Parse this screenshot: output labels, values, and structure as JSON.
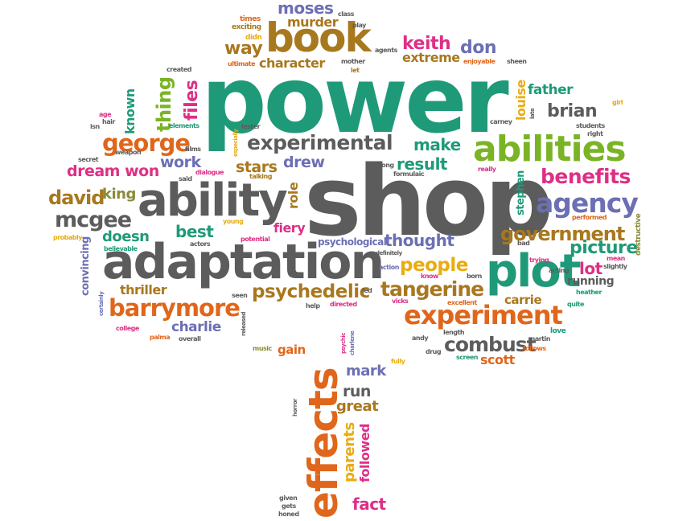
{
  "colors": {
    "green": "#1f9a78",
    "gray": "#5c5c5c",
    "brown": "#a8781e",
    "orange": "#e0661b",
    "pink": "#de2f86",
    "blue": "#6c6fb3",
    "lime": "#7ab426",
    "gold": "#e8ac12",
    "olive": "#8a8a3a"
  },
  "words": [
    {
      "id": "power",
      "text": "power",
      "color": "green"
    },
    {
      "id": "shop",
      "text": "shop",
      "color": "gray"
    },
    {
      "id": "adaptation",
      "text": "adaptation",
      "color": "gray"
    },
    {
      "id": "ability",
      "text": "ability",
      "color": "gray"
    },
    {
      "id": "book",
      "text": "book",
      "color": "brown"
    },
    {
      "id": "abilities",
      "text": "abilities",
      "color": "lime"
    },
    {
      "id": "plot",
      "text": "plot",
      "color": "green"
    },
    {
      "id": "effects",
      "text": "effects",
      "color": "orange"
    },
    {
      "id": "experiment",
      "text": "experiment",
      "color": "orange"
    },
    {
      "id": "experimental",
      "text": "experimental",
      "color": "gray"
    },
    {
      "id": "barrymore",
      "text": "barrymore",
      "color": "orange"
    },
    {
      "id": "agency",
      "text": "agency",
      "color": "blue"
    },
    {
      "id": "government",
      "text": "government",
      "color": "brown"
    },
    {
      "id": "george",
      "text": "george",
      "color": "orange"
    },
    {
      "id": "psychedelic",
      "text": "psychedelic",
      "color": "brown"
    },
    {
      "id": "tangerine",
      "text": "tangerine",
      "color": "brown"
    },
    {
      "id": "combust",
      "text": "combust",
      "color": "gray"
    },
    {
      "id": "benefits",
      "text": "benefits",
      "color": "pink"
    },
    {
      "id": "picture",
      "text": "picture",
      "color": "green"
    },
    {
      "id": "mcgee",
      "text": "mcgee",
      "color": "gray"
    },
    {
      "id": "david",
      "text": "david",
      "color": "brown"
    },
    {
      "id": "king",
      "text": "king",
      "color": "olive"
    },
    {
      "id": "dreamwon",
      "text": "dream won",
      "color": "pink"
    },
    {
      "id": "result",
      "text": "result",
      "color": "green"
    },
    {
      "id": "thought",
      "text": "thought",
      "color": "blue"
    },
    {
      "id": "people",
      "text": "people",
      "color": "gold"
    },
    {
      "id": "keith",
      "text": "keith",
      "color": "pink"
    },
    {
      "id": "don",
      "text": "don",
      "color": "blue"
    },
    {
      "id": "extreme",
      "text": "extreme",
      "color": "brown"
    },
    {
      "id": "moses",
      "text": "moses",
      "color": "blue"
    },
    {
      "id": "murder",
      "text": "murder",
      "color": "brown"
    },
    {
      "id": "way",
      "text": "way",
      "color": "brown"
    },
    {
      "id": "character",
      "text": "character",
      "color": "brown"
    },
    {
      "id": "thing",
      "text": "thing",
      "color": "lime"
    },
    {
      "id": "files",
      "text": "files",
      "color": "pink"
    },
    {
      "id": "known",
      "text": "known",
      "color": "green"
    },
    {
      "id": "father",
      "text": "father",
      "color": "green"
    },
    {
      "id": "brian",
      "text": "brian",
      "color": "gray"
    },
    {
      "id": "louise",
      "text": "louise",
      "color": "gold"
    },
    {
      "id": "make",
      "text": "make",
      "color": "green"
    },
    {
      "id": "work",
      "text": "work",
      "color": "blue"
    },
    {
      "id": "stars",
      "text": "stars",
      "color": "brown"
    },
    {
      "id": "drew",
      "text": "drew",
      "color": "blue"
    },
    {
      "id": "role",
      "text": "role",
      "color": "brown"
    },
    {
      "id": "best",
      "text": "best",
      "color": "green"
    },
    {
      "id": "doesn",
      "text": "doesn",
      "color": "green"
    },
    {
      "id": "fiery",
      "text": "fiery",
      "color": "pink"
    },
    {
      "id": "thriller",
      "text": "thriller",
      "color": "brown"
    },
    {
      "id": "charlie",
      "text": "charlie",
      "color": "blue"
    },
    {
      "id": "lot",
      "text": "lot",
      "color": "pink"
    },
    {
      "id": "running",
      "text": "running",
      "color": "gray"
    },
    {
      "id": "carrie",
      "text": "carrie",
      "color": "brown"
    },
    {
      "id": "scott",
      "text": "scott",
      "color": "orange"
    },
    {
      "id": "mark",
      "text": "mark",
      "color": "blue"
    },
    {
      "id": "run",
      "text": "run",
      "color": "gray"
    },
    {
      "id": "great",
      "text": "great",
      "color": "brown"
    },
    {
      "id": "parents",
      "text": "parents",
      "color": "gold"
    },
    {
      "id": "followed",
      "text": "followed",
      "color": "pink"
    },
    {
      "id": "fact",
      "text": "fact",
      "color": "pink"
    },
    {
      "id": "gain",
      "text": "gain",
      "color": "orange"
    },
    {
      "id": "convincing",
      "text": "convincing",
      "color": "blue"
    },
    {
      "id": "stephen",
      "text": "stephen",
      "color": "green"
    },
    {
      "id": "psychological",
      "text": "psychological",
      "color": "blue"
    },
    {
      "id": "destructive",
      "text": "destructive",
      "color": "olive"
    },
    {
      "id": "times",
      "text": "times",
      "color": "orange"
    },
    {
      "id": "exciting",
      "text": "exciting",
      "color": "brown"
    },
    {
      "id": "didn",
      "text": "didn",
      "color": "gold"
    },
    {
      "id": "ultimate",
      "text": "ultimate",
      "color": "orange"
    },
    {
      "id": "class",
      "text": "class",
      "color": "gray"
    },
    {
      "id": "play",
      "text": "play",
      "color": "gray"
    },
    {
      "id": "agents",
      "text": "agents",
      "color": "gray"
    },
    {
      "id": "mother",
      "text": "mother",
      "color": "gray"
    },
    {
      "id": "let",
      "text": "let",
      "color": "brown"
    },
    {
      "id": "enjoyable",
      "text": "enjoyable",
      "color": "orange"
    },
    {
      "id": "sheen",
      "text": "sheen",
      "color": "gray"
    },
    {
      "id": "created",
      "text": "created",
      "color": "gray"
    },
    {
      "id": "age",
      "text": "age",
      "color": "pink"
    },
    {
      "id": "hair",
      "text": "hair",
      "color": "gray"
    },
    {
      "id": "isn",
      "text": "isn",
      "color": "gray"
    },
    {
      "id": "elements",
      "text": "elements",
      "color": "green"
    },
    {
      "id": "lester",
      "text": "lester",
      "color": "gray"
    },
    {
      "id": "especially",
      "text": "especially",
      "color": "gold"
    },
    {
      "id": "secret",
      "text": "secret",
      "color": "gray"
    },
    {
      "id": "weapon",
      "text": "weapon",
      "color": "gray"
    },
    {
      "id": "films",
      "text": "films",
      "color": "gray"
    },
    {
      "id": "said",
      "text": "said",
      "color": "gray"
    },
    {
      "id": "dialogue",
      "text": "dialogue",
      "color": "pink"
    },
    {
      "id": "talking",
      "text": "talking",
      "color": "brown"
    },
    {
      "id": "long",
      "text": "long",
      "color": "gray"
    },
    {
      "id": "formulaic",
      "text": "formulaic",
      "color": "gray"
    },
    {
      "id": "really",
      "text": "really",
      "color": "pink"
    },
    {
      "id": "young",
      "text": "young",
      "color": "gold"
    },
    {
      "id": "actors",
      "text": "actors",
      "color": "gray"
    },
    {
      "id": "potential",
      "text": "potential",
      "color": "pink"
    },
    {
      "id": "probably",
      "text": "probably",
      "color": "gold"
    },
    {
      "id": "believable",
      "text": "believable",
      "color": "green"
    },
    {
      "id": "certainly",
      "text": "certainly",
      "color": "blue"
    },
    {
      "id": "seen",
      "text": "seen",
      "color": "gray"
    },
    {
      "id": "led",
      "text": "led",
      "color": "gray"
    },
    {
      "id": "help",
      "text": "help",
      "color": "gray"
    },
    {
      "id": "directed",
      "text": "directed",
      "color": "pink"
    },
    {
      "id": "released",
      "text": "released",
      "color": "gray"
    },
    {
      "id": "college",
      "text": "college",
      "color": "pink"
    },
    {
      "id": "palma",
      "text": "palma",
      "color": "orange"
    },
    {
      "id": "overall",
      "text": "overall",
      "color": "gray"
    },
    {
      "id": "music",
      "text": "music",
      "color": "olive"
    },
    {
      "id": "psychic",
      "text": "psychic",
      "color": "pink"
    },
    {
      "id": "charlene",
      "text": "charlene",
      "color": "blue"
    },
    {
      "id": "definitely",
      "text": "definitely",
      "color": "gray"
    },
    {
      "id": "action",
      "text": "action",
      "color": "blue"
    },
    {
      "id": "know",
      "text": "know",
      "color": "pink"
    },
    {
      "id": "born",
      "text": "born",
      "color": "gray"
    },
    {
      "id": "vicks",
      "text": "vicks",
      "color": "pink"
    },
    {
      "id": "excellent",
      "text": "excellent",
      "color": "orange"
    },
    {
      "id": "length",
      "text": "length",
      "color": "gray"
    },
    {
      "id": "andy",
      "text": "andy",
      "color": "gray"
    },
    {
      "id": "drug",
      "text": "drug",
      "color": "gray"
    },
    {
      "id": "screen",
      "text": "screen",
      "color": "green"
    },
    {
      "id": "fully",
      "text": "fully",
      "color": "gold"
    },
    {
      "id": "martin",
      "text": "martin",
      "color": "gray"
    },
    {
      "id": "follows",
      "text": "follows",
      "color": "orange"
    },
    {
      "id": "love",
      "text": "love",
      "color": "green"
    },
    {
      "id": "quite",
      "text": "quite",
      "color": "green"
    },
    {
      "id": "heather",
      "text": "heather",
      "color": "green"
    },
    {
      "id": "mean",
      "text": "mean",
      "color": "pink"
    },
    {
      "id": "slightly",
      "text": "slightly",
      "color": "gray"
    },
    {
      "id": "trying",
      "text": "trying",
      "color": "pink"
    },
    {
      "id": "bad",
      "text": "bad",
      "color": "gray"
    },
    {
      "id": "performed",
      "text": "performed",
      "color": "orange"
    },
    {
      "id": "ll",
      "text": "ll",
      "color": "gray"
    },
    {
      "id": "carney",
      "text": "carney",
      "color": "gray"
    },
    {
      "id": "late",
      "text": "late",
      "color": "gray"
    },
    {
      "id": "girl",
      "text": "girl",
      "color": "gold"
    },
    {
      "id": "students",
      "text": "students",
      "color": "gray"
    },
    {
      "id": "right",
      "text": "right",
      "color": "gray"
    },
    {
      "id": "acting",
      "text": "acting",
      "color": "gray"
    },
    {
      "id": "horror",
      "text": "horror",
      "color": "gray"
    },
    {
      "id": "given",
      "text": "given",
      "color": "gray"
    },
    {
      "id": "gets",
      "text": "gets",
      "color": "gray"
    },
    {
      "id": "honed",
      "text": "honed",
      "color": "gray"
    }
  ]
}
